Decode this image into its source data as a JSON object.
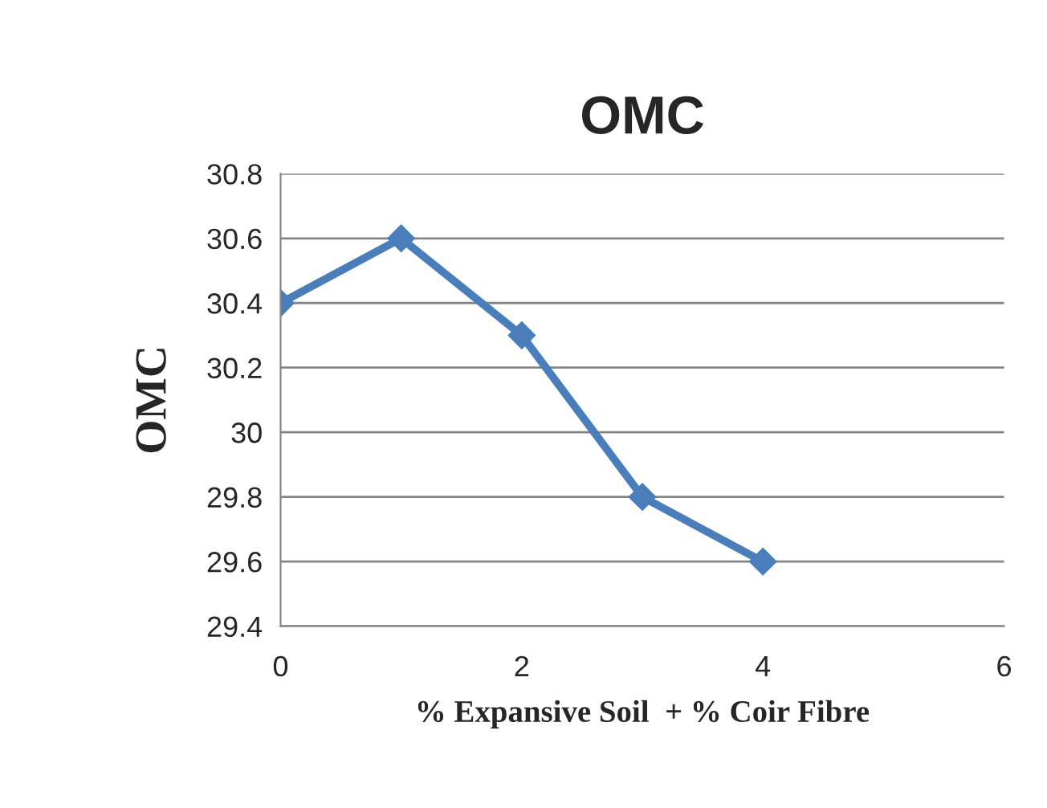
{
  "chart_data": {
    "type": "line",
    "title": "OMC",
    "xlabel": "% Expansive Soil  + % Coir Fibre",
    "ylabel": "OMC",
    "x": [
      0,
      1,
      2,
      3,
      4
    ],
    "series": [
      {
        "color": "#4a7ebb",
        "values": [
          30.4,
          30.6,
          30.3,
          29.8,
          29.6
        ]
      }
    ],
    "xlim": [
      0,
      6
    ],
    "xticks": [
      0,
      2,
      4,
      6
    ],
    "ylim": [
      29.4,
      30.8
    ],
    "yticks": [
      {
        "value": 29.4,
        "label": "29.4"
      },
      {
        "value": 29.6,
        "label": "29.6"
      },
      {
        "value": 29.8,
        "label": "29.8"
      },
      30,
      {
        "value": 30.2,
        "label": "30.2"
      },
      {
        "value": 30.4,
        "label": "30.4"
      },
      {
        "value": 30.6,
        "label": "30.6"
      },
      {
        "value": 30.8,
        "label": "30.8"
      }
    ],
    "grid": "y",
    "marker": "diamond",
    "line_style": "solid"
  }
}
